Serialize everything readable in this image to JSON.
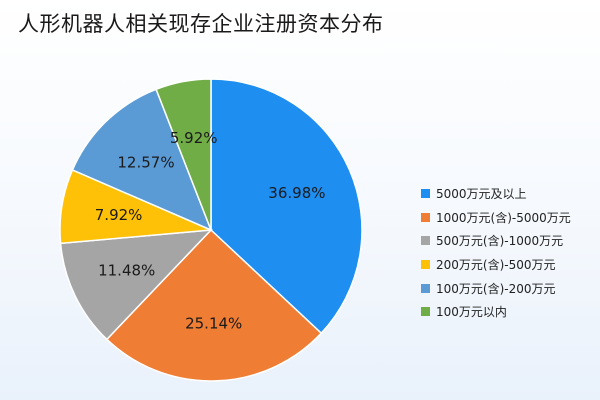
{
  "chart_data": {
    "type": "pie",
    "title": "人形机器人相关现存企业注册资本分布",
    "slices": [
      {
        "label": "5000万元及以上",
        "value": 36.98,
        "display": "36.98%",
        "color": "#1f8ef1"
      },
      {
        "label": "1000万元(含)-5000万元",
        "value": 25.14,
        "display": "25.14%",
        "color": "#ef7d33"
      },
      {
        "label": "500万元(含)-1000万元",
        "value": 11.48,
        "display": "11.48%",
        "color": "#a5a5a5"
      },
      {
        "label": "200万元(含)-500万元",
        "value": 7.92,
        "display": "7.92%",
        "color": "#ffc107"
      },
      {
        "label": "100万元(含)-200万元",
        "value": 12.57,
        "display": "12.57%",
        "color": "#5b9bd5"
      },
      {
        "label": "100万元以内",
        "value": 5.92,
        "display": "5.92%",
        "color": "#70ad47"
      }
    ],
    "legend_position": "right"
  }
}
